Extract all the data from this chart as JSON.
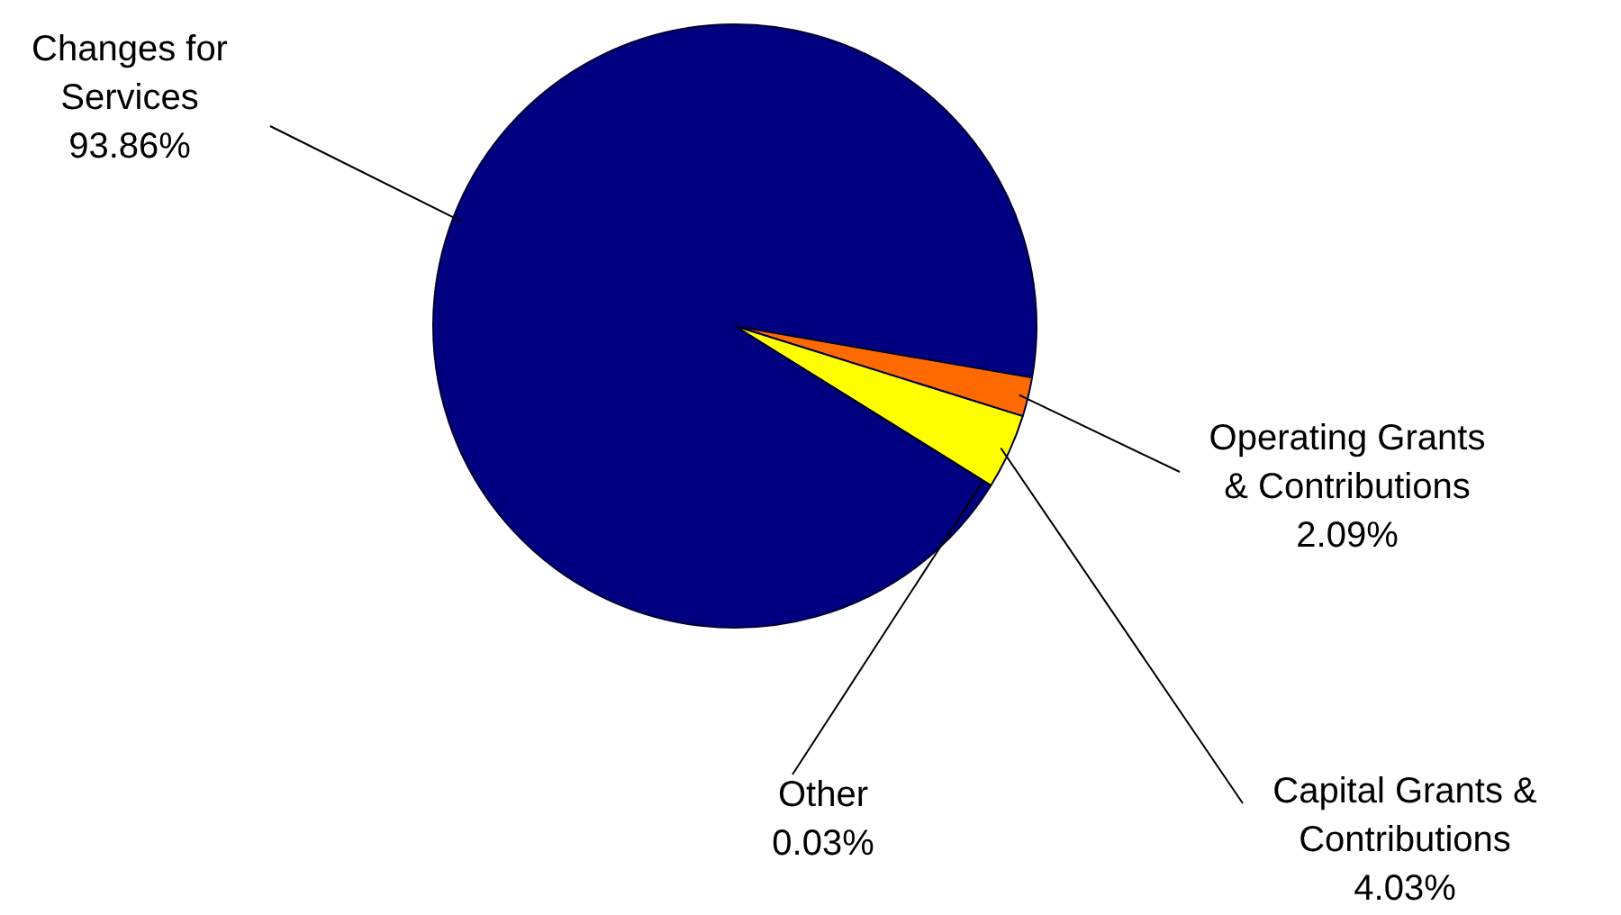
{
  "chart_data": {
    "type": "pie",
    "categories": [
      "Changes for Services",
      "Operating Grants & Contributions",
      "Capital Grants & Contributions",
      "Other"
    ],
    "values": [
      93.86,
      2.09,
      4.03,
      0.03
    ],
    "value_labels": [
      "93.86%",
      "2.09%",
      "4.03%",
      "0.03%"
    ],
    "colors": [
      "#000080",
      "#ff6a00",
      "#ffff00",
      "#c8c800"
    ],
    "legend": false
  }
}
